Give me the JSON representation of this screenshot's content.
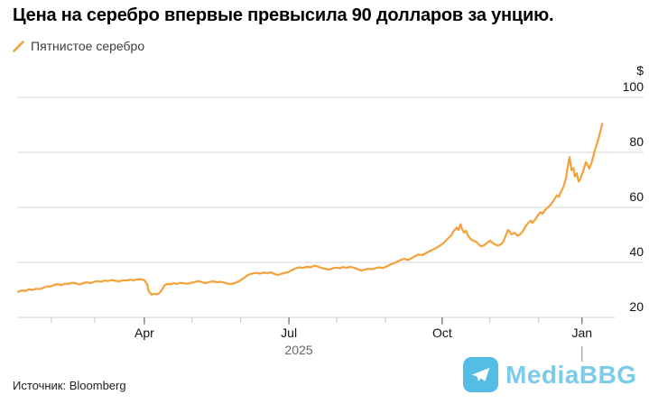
{
  "header": {
    "title": "Цена на серебро впервые превысила 90 долларов за унцию.",
    "legend": {
      "label": "Пятнистое серебро",
      "swatch_color": "#F5A13A"
    }
  },
  "chart_data": {
    "type": "line",
    "title": "Цена на серебро впервые превысила 90 долларов за унцию.",
    "x_unit": "months since 2025-01-01",
    "x_range": [
      0.28,
      13.28
    ],
    "y_unit": "$",
    "y_range": [
      20,
      100
    ],
    "y_ticks": [
      100,
      80,
      60,
      40,
      20
    ],
    "grid": "horizontal",
    "legend_position": "top-left",
    "year_label": "2025",
    "year_divider_m": 12,
    "x_ticks": [
      {
        "m": 0.99,
        "label": ""
      },
      {
        "m": 1.89,
        "label": ""
      },
      {
        "m": 2.92,
        "label": "Apr"
      },
      {
        "m": 3.91,
        "label": ""
      },
      {
        "m": 4.92,
        "label": ""
      },
      {
        "m": 5.92,
        "label": "Jul"
      },
      {
        "m": 6.91,
        "label": ""
      },
      {
        "m": 7.92,
        "label": ""
      },
      {
        "m": 9.1,
        "label": "Oct"
      },
      {
        "m": 10.09,
        "label": ""
      },
      {
        "m": 11.1,
        "label": ""
      },
      {
        "m": 12.0,
        "label": "Jan"
      }
    ],
    "series": [
      {
        "name": "Пятнистое серебро",
        "color": "#F5A13A",
        "points": [
          [
            0.3,
            29.3
          ],
          [
            0.37,
            29.8
          ],
          [
            0.45,
            29.6
          ],
          [
            0.52,
            30.2
          ],
          [
            0.6,
            30.0
          ],
          [
            0.67,
            30.4
          ],
          [
            0.75,
            30.3
          ],
          [
            0.82,
            30.8
          ],
          [
            0.9,
            31.3
          ],
          [
            0.97,
            31.2
          ],
          [
            1.05,
            31.8
          ],
          [
            1.12,
            32.1
          ],
          [
            1.2,
            31.7
          ],
          [
            1.27,
            32.3
          ],
          [
            1.35,
            32.2
          ],
          [
            1.42,
            32.6
          ],
          [
            1.5,
            32.4
          ],
          [
            1.57,
            32.0
          ],
          [
            1.65,
            32.5
          ],
          [
            1.72,
            32.8
          ],
          [
            1.8,
            32.5
          ],
          [
            1.87,
            32.9
          ],
          [
            1.95,
            33.2
          ],
          [
            2.02,
            33.0
          ],
          [
            2.1,
            33.4
          ],
          [
            2.17,
            33.2
          ],
          [
            2.25,
            33.6
          ],
          [
            2.32,
            33.3
          ],
          [
            2.4,
            33.1
          ],
          [
            2.47,
            33.5
          ],
          [
            2.55,
            33.4
          ],
          [
            2.62,
            33.7
          ],
          [
            2.7,
            33.5
          ],
          [
            2.77,
            33.8
          ],
          [
            2.85,
            33.9
          ],
          [
            2.92,
            33.5
          ],
          [
            2.98,
            32.0
          ],
          [
            3.01,
            29.5
          ],
          [
            3.07,
            28.3
          ],
          [
            3.13,
            28.6
          ],
          [
            3.18,
            28.4
          ],
          [
            3.24,
            29.0
          ],
          [
            3.3,
            30.5
          ],
          [
            3.35,
            31.8
          ],
          [
            3.41,
            32.2
          ],
          [
            3.46,
            32.0
          ],
          [
            3.52,
            32.4
          ],
          [
            3.6,
            32.2
          ],
          [
            3.67,
            32.6
          ],
          [
            3.75,
            32.4
          ],
          [
            3.82,
            32.2
          ],
          [
            3.89,
            32.6
          ],
          [
            3.97,
            32.9
          ],
          [
            4.04,
            33.2
          ],
          [
            4.12,
            32.8
          ],
          [
            4.19,
            32.5
          ],
          [
            4.27,
            32.9
          ],
          [
            4.34,
            33.1
          ],
          [
            4.42,
            32.8
          ],
          [
            4.49,
            33.0
          ],
          [
            4.57,
            32.7
          ],
          [
            4.64,
            32.3
          ],
          [
            4.72,
            32.1
          ],
          [
            4.79,
            32.5
          ],
          [
            4.87,
            33.0
          ],
          [
            4.94,
            33.8
          ],
          [
            5.02,
            34.8
          ],
          [
            5.09,
            35.6
          ],
          [
            5.17,
            36.0
          ],
          [
            5.24,
            36.2
          ],
          [
            5.32,
            35.9
          ],
          [
            5.39,
            36.3
          ],
          [
            5.47,
            36.1
          ],
          [
            5.54,
            36.4
          ],
          [
            5.62,
            35.8
          ],
          [
            5.69,
            35.4
          ],
          [
            5.77,
            35.9
          ],
          [
            5.84,
            36.2
          ],
          [
            5.92,
            36.6
          ],
          [
            5.99,
            37.3
          ],
          [
            6.07,
            37.9
          ],
          [
            6.14,
            38.2
          ],
          [
            6.22,
            38.0
          ],
          [
            6.29,
            38.4
          ],
          [
            6.37,
            38.2
          ],
          [
            6.44,
            38.8
          ],
          [
            6.52,
            38.5
          ],
          [
            6.59,
            38.0
          ],
          [
            6.67,
            37.7
          ],
          [
            6.74,
            37.4
          ],
          [
            6.82,
            37.8
          ],
          [
            6.89,
            38.1
          ],
          [
            6.97,
            37.9
          ],
          [
            7.04,
            38.3
          ],
          [
            7.12,
            38.0
          ],
          [
            7.19,
            38.4
          ],
          [
            7.27,
            38.1
          ],
          [
            7.34,
            37.6
          ],
          [
            7.42,
            37.0
          ],
          [
            7.49,
            37.4
          ],
          [
            7.57,
            37.7
          ],
          [
            7.64,
            37.5
          ],
          [
            7.72,
            37.9
          ],
          [
            7.79,
            38.2
          ],
          [
            7.87,
            38.0
          ],
          [
            7.94,
            38.5
          ],
          [
            8.01,
            39.1
          ],
          [
            8.09,
            39.6
          ],
          [
            8.16,
            40.2
          ],
          [
            8.24,
            40.9
          ],
          [
            8.31,
            41.3
          ],
          [
            8.39,
            40.9
          ],
          [
            8.46,
            41.5
          ],
          [
            8.54,
            42.3
          ],
          [
            8.61,
            42.9
          ],
          [
            8.69,
            42.6
          ],
          [
            8.76,
            43.4
          ],
          [
            8.84,
            44.1
          ],
          [
            8.91,
            44.7
          ],
          [
            8.99,
            45.4
          ],
          [
            9.06,
            46.2
          ],
          [
            9.14,
            47.3
          ],
          [
            9.21,
            48.6
          ],
          [
            9.29,
            49.9
          ],
          [
            9.34,
            51.5
          ],
          [
            9.4,
            52.6
          ],
          [
            9.44,
            51.8
          ],
          [
            9.48,
            53.9
          ],
          [
            9.51,
            52.2
          ],
          [
            9.55,
            50.8
          ],
          [
            9.59,
            51.5
          ],
          [
            9.64,
            49.6
          ],
          [
            9.7,
            48.3
          ],
          [
            9.76,
            47.8
          ],
          [
            9.81,
            47.4
          ],
          [
            9.87,
            46.3
          ],
          [
            9.92,
            45.8
          ],
          [
            9.98,
            46.4
          ],
          [
            10.04,
            47.2
          ],
          [
            10.09,
            47.9
          ],
          [
            10.15,
            47.0
          ],
          [
            10.21,
            46.4
          ],
          [
            10.26,
            46.1
          ],
          [
            10.32,
            46.6
          ],
          [
            10.37,
            47.7
          ],
          [
            10.43,
            50.3
          ],
          [
            10.47,
            51.8
          ],
          [
            10.51,
            50.9
          ],
          [
            10.54,
            50.2
          ],
          [
            10.6,
            50.8
          ],
          [
            10.66,
            49.7
          ],
          [
            10.71,
            50.1
          ],
          [
            10.77,
            51.2
          ],
          [
            10.82,
            52.9
          ],
          [
            10.88,
            54.3
          ],
          [
            10.94,
            55.2
          ],
          [
            10.97,
            54.4
          ],
          [
            11.03,
            55.6
          ],
          [
            11.09,
            57.2
          ],
          [
            11.14,
            58.3
          ],
          [
            11.18,
            57.7
          ],
          [
            11.24,
            59.1
          ],
          [
            11.29,
            60.0
          ],
          [
            11.35,
            61.0
          ],
          [
            11.4,
            62.2
          ],
          [
            11.44,
            63.3
          ],
          [
            11.48,
            64.5
          ],
          [
            11.52,
            63.8
          ],
          [
            11.55,
            65.2
          ],
          [
            11.59,
            66.5
          ],
          [
            11.63,
            68.2
          ],
          [
            11.67,
            71.0
          ],
          [
            11.7,
            74.5
          ],
          [
            11.74,
            78.3
          ],
          [
            11.78,
            73.5
          ],
          [
            11.82,
            74.3
          ],
          [
            11.85,
            71.2
          ],
          [
            11.89,
            72.4
          ],
          [
            11.93,
            69.3
          ],
          [
            11.97,
            70.6
          ],
          [
            12.0,
            72.1
          ],
          [
            12.04,
            74.0
          ],
          [
            12.08,
            76.5
          ],
          [
            12.11,
            75.6
          ],
          [
            12.15,
            74.1
          ],
          [
            12.19,
            75.8
          ],
          [
            12.23,
            78.3
          ],
          [
            12.26,
            80.4
          ],
          [
            12.3,
            82.6
          ],
          [
            12.34,
            84.9
          ],
          [
            12.38,
            87.6
          ],
          [
            12.42,
            90.4
          ]
        ]
      }
    ]
  },
  "footer": {
    "source": "Источник: Bloomberg"
  },
  "watermark": {
    "text": "MediaBBG",
    "icon": "telegram-plane-icon",
    "icon_color": "#54BDE6",
    "text_color": "#7BCBE9"
  }
}
